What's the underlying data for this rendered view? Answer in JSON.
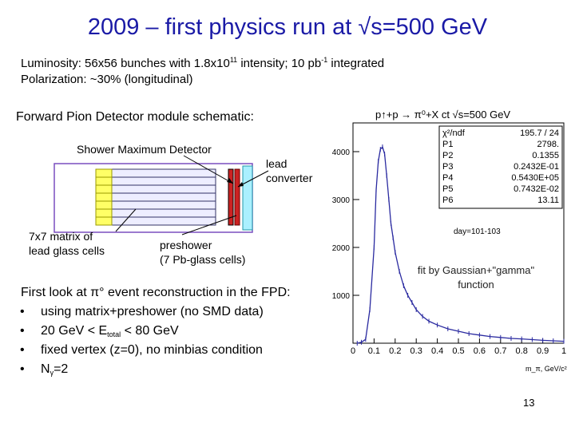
{
  "slide": {
    "title": "2009 – first physics run at √s=500 GeV",
    "lumi_line": {
      "a": "Luminosity: 56x56 bunches with 1.8x10",
      "a_sup": "11",
      "b": " intensity; 10 pb",
      "b_sup": "-1",
      "c": " integrated"
    },
    "polarization": "Polarization: ~30% (longitudinal)",
    "schematic_heading": "Forward Pion Detector module schematic:",
    "labels": {
      "smd": "Shower Maximum Detector",
      "lead": "lead",
      "converter": "converter",
      "matrix_1": "7x7 matrix of",
      "matrix_2": "lead glass cells",
      "preshower_1": "preshower",
      "preshower_2": "(7 Pb-glass cells)"
    },
    "first_look": "First look at π° event reconstruction in the FPD:",
    "bullet_symbol": "•",
    "bullets": {
      "b1": "using matrix+preshower (no SMD data)",
      "b2_a": "20 GeV < E",
      "b2_sub": "total",
      "b2_b": " < 80 GeV",
      "b3": "fixed vertex (z=0), no minbias condition",
      "b4_a": "N",
      "b4_sub": "γ",
      "b4_b": "=2"
    },
    "fit_note_1": "fit by Gaussian+\"gamma\"",
    "fit_note_2": "function",
    "page_number": "13"
  },
  "chart_data": {
    "type": "histogram",
    "title": "p↑+p → π⁰+X  ct √s=500 GeV",
    "xlabel": "m_π, GeV/c²",
    "day_label": "day=101-103",
    "xlim": [
      0,
      1
    ],
    "ylim": [
      0,
      4600
    ],
    "x_ticks": [
      "0",
      "0.1",
      "0.2",
      "0.3",
      "0.4",
      "0.5",
      "0.6",
      "0.7",
      "0.8",
      "0.9",
      "1"
    ],
    "y_ticks": [
      "1000",
      "2000",
      "3000",
      "4000"
    ],
    "stats": [
      {
        "name": "χ²/ndf",
        "value": "195.7   /   24"
      },
      {
        "name": "P1",
        "value": "2798."
      },
      {
        "name": "P2",
        "value": "0.1355"
      },
      {
        "name": "P3",
        "value": "0.2432E-01"
      },
      {
        "name": "P4",
        "value": "0.5430E+05"
      },
      {
        "name": "P5",
        "value": "0.7432E-02"
      },
      {
        "name": "P6",
        "value": "13.11"
      }
    ],
    "x": [
      0.02,
      0.04,
      0.06,
      0.08,
      0.1,
      0.11,
      0.12,
      0.13,
      0.14,
      0.15,
      0.16,
      0.17,
      0.18,
      0.19,
      0.2,
      0.22,
      0.24,
      0.26,
      0.28,
      0.3,
      0.33,
      0.36,
      0.4,
      0.45,
      0.5,
      0.55,
      0.6,
      0.65,
      0.7,
      0.75,
      0.8,
      0.85,
      0.9,
      0.95,
      1.0
    ],
    "y": [
      0,
      20,
      80,
      700,
      2000,
      3200,
      3800,
      4050,
      4100,
      3950,
      3500,
      3000,
      2500,
      2200,
      1900,
      1500,
      1200,
      1000,
      850,
      700,
      560,
      460,
      380,
      300,
      250,
      200,
      170,
      140,
      120,
      100,
      90,
      75,
      60,
      50,
      40
    ]
  }
}
